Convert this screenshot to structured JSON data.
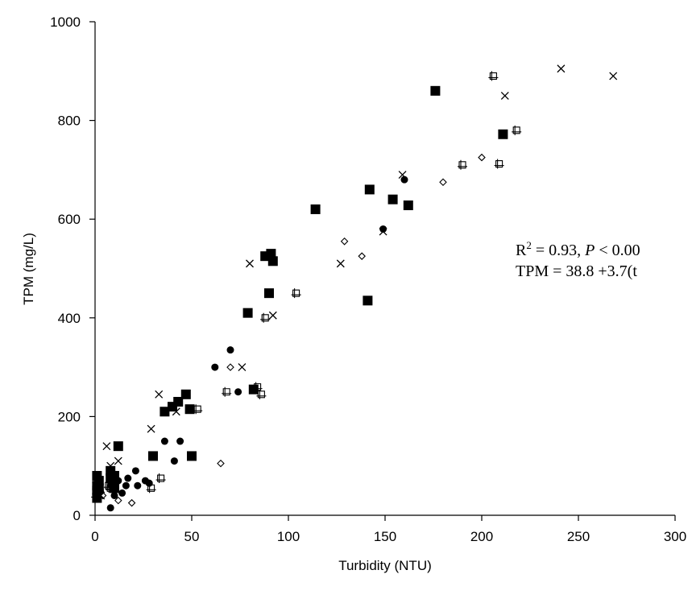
{
  "chart_data": {
    "type": "scatter",
    "title": "",
    "xlabel": "Turbidity (NTU)",
    "ylabel": "TPM (mg/L)",
    "xlim": [
      0,
      300
    ],
    "ylim": [
      0,
      1000
    ],
    "x_ticks": [
      "0",
      "50",
      "100",
      "150",
      "200",
      "250",
      "300"
    ],
    "y_ticks": [
      "0",
      "200",
      "400",
      "600",
      "800",
      "1000"
    ],
    "grid": false,
    "legend": "none",
    "annotation": {
      "r2_prefix": "R",
      "r2_sup": "2",
      "r2_rest": " = 0.93, ",
      "p_symbol": "P",
      "p_rest": " < 0.00",
      "equation": "TPM = 38.8 +3.7(t"
    },
    "series": [
      {
        "marker": "square-filled",
        "points": [
          [
            1,
            80
          ],
          [
            1,
            60
          ],
          [
            1,
            50
          ],
          [
            2,
            45
          ],
          [
            2,
            55
          ],
          [
            1,
            35
          ],
          [
            2,
            70
          ],
          [
            8,
            90
          ],
          [
            8,
            75
          ],
          [
            9,
            65
          ],
          [
            10,
            80
          ],
          [
            10,
            55
          ],
          [
            12,
            140
          ],
          [
            30,
            120
          ],
          [
            36,
            210
          ],
          [
            40,
            220
          ],
          [
            43,
            230
          ],
          [
            47,
            245
          ],
          [
            49,
            215
          ],
          [
            50,
            120
          ],
          [
            79,
            410
          ],
          [
            82,
            255
          ],
          [
            88,
            525
          ],
          [
            90,
            450
          ],
          [
            91,
            530
          ],
          [
            92,
            515
          ],
          [
            114,
            620
          ],
          [
            141,
            435
          ],
          [
            142,
            660
          ],
          [
            154,
            640
          ],
          [
            162,
            628
          ],
          [
            176,
            860
          ],
          [
            211,
            772
          ]
        ]
      },
      {
        "marker": "circle-filled",
        "points": [
          [
            1,
            35
          ],
          [
            2,
            55
          ],
          [
            3,
            45
          ],
          [
            8,
            15
          ],
          [
            10,
            40
          ],
          [
            12,
            70
          ],
          [
            14,
            45
          ],
          [
            16,
            60
          ],
          [
            17,
            75
          ],
          [
            21,
            90
          ],
          [
            22,
            60
          ],
          [
            26,
            70
          ],
          [
            28,
            65
          ],
          [
            36,
            150
          ],
          [
            41,
            110
          ],
          [
            44,
            150
          ],
          [
            62,
            300
          ],
          [
            70,
            335
          ],
          [
            74,
            250
          ],
          [
            149,
            580
          ],
          [
            160,
            680
          ]
        ]
      },
      {
        "marker": "diamond-open",
        "points": [
          [
            4,
            40
          ],
          [
            12,
            30
          ],
          [
            19,
            25
          ],
          [
            65,
            105
          ],
          [
            70,
            300
          ],
          [
            129,
            555
          ],
          [
            138,
            525
          ],
          [
            180,
            675
          ],
          [
            200,
            725
          ]
        ]
      },
      {
        "marker": "square-open",
        "points": [
          [
            0.5,
            40
          ],
          [
            1,
            48
          ],
          [
            7,
            60
          ],
          [
            8,
            55
          ],
          [
            29,
            55
          ],
          [
            34,
            75
          ],
          [
            53,
            215
          ],
          [
            68,
            250
          ],
          [
            84,
            260
          ],
          [
            86,
            245
          ],
          [
            88,
            400
          ],
          [
            104,
            450
          ],
          [
            190,
            710
          ],
          [
            206,
            890
          ],
          [
            209,
            712
          ],
          [
            218,
            780
          ]
        ]
      },
      {
        "marker": "cross",
        "points": [
          [
            0.5,
            60
          ],
          [
            1,
            55
          ],
          [
            3,
            40
          ],
          [
            6,
            140
          ],
          [
            8,
            100
          ],
          [
            12,
            110
          ],
          [
            29,
            175
          ],
          [
            33,
            245
          ],
          [
            42,
            210
          ],
          [
            76,
            300
          ],
          [
            80,
            510
          ],
          [
            92,
            405
          ],
          [
            127,
            510
          ],
          [
            149,
            575
          ],
          [
            159,
            690
          ],
          [
            212,
            850
          ],
          [
            241,
            905
          ],
          [
            268,
            890
          ]
        ]
      }
    ]
  }
}
